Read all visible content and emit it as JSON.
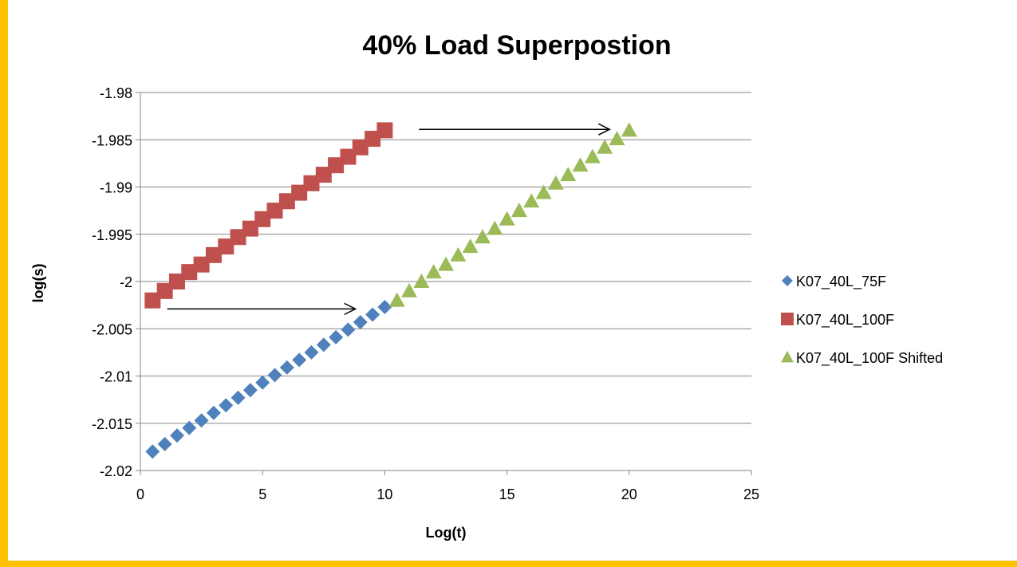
{
  "chart_data": {
    "type": "scatter",
    "title": "40% Load Superpostion",
    "xlabel": "Log(t)",
    "ylabel": "log(s)",
    "xlim": [
      0,
      25
    ],
    "ylim": [
      -2.02,
      -1.98
    ],
    "x_ticks": [
      0,
      5,
      10,
      15,
      20,
      25
    ],
    "x_tick_labels": [
      "0",
      "5",
      "10",
      "15",
      "20",
      "25"
    ],
    "y_ticks": [
      -1.98,
      -1.985,
      -1.99,
      -1.995,
      -2.0,
      -2.005,
      -2.01,
      -2.015,
      -2.02
    ],
    "y_tick_labels": [
      "-1.98",
      "-1.985",
      "-1.99",
      "-1.995",
      "-2",
      "-2.005",
      "-2.01",
      "-2.015",
      "-2.02"
    ],
    "grid": "horizontal",
    "legend_position": "right",
    "series": [
      {
        "name": "K07_40L_75F",
        "marker": "diamond",
        "color": "#4F81BD",
        "x": [
          0.5,
          1.0,
          1.5,
          2.0,
          2.5,
          3.0,
          3.5,
          4.0,
          4.5,
          5.0,
          5.5,
          6.0,
          6.5,
          7.0,
          7.5,
          8.0,
          8.5,
          9.0,
          9.5,
          10.0
        ],
        "y": [
          -2.018,
          -2.0172,
          -2.0163,
          -2.0155,
          -2.0147,
          -2.0139,
          -2.0131,
          -2.0123,
          -2.0115,
          -2.0107,
          -2.0099,
          -2.0091,
          -2.0083,
          -2.0075,
          -2.0067,
          -2.0059,
          -2.0051,
          -2.0043,
          -2.0035,
          -2.0027
        ]
      },
      {
        "name": "K07_40L_100F",
        "marker": "square",
        "color": "#C0504D",
        "x": [
          0.5,
          1.0,
          1.5,
          2.0,
          2.5,
          3.0,
          3.5,
          4.0,
          4.5,
          5.0,
          5.5,
          6.0,
          6.5,
          7.0,
          7.5,
          8.0,
          8.5,
          9.0,
          9.5,
          10.0
        ],
        "y": [
          -2.002,
          -2.001,
          -2.0,
          -1.999,
          -1.9982,
          -1.9972,
          -1.9963,
          -1.9953,
          -1.9944,
          -1.9934,
          -1.9925,
          -1.9915,
          -1.9906,
          -1.9896,
          -1.9887,
          -1.9877,
          -1.9868,
          -1.9858,
          -1.9849,
          -1.984
        ]
      },
      {
        "name": "K07_40L_100F Shifted",
        "marker": "triangle",
        "color": "#9BBB59",
        "x": [
          10.5,
          11.0,
          11.5,
          12.0,
          12.5,
          13.0,
          13.5,
          14.0,
          14.5,
          15.0,
          15.5,
          16.0,
          16.5,
          17.0,
          17.5,
          18.0,
          18.5,
          19.0,
          19.5,
          20.0
        ],
        "y": [
          -2.002,
          -2.001,
          -2.0,
          -1.999,
          -1.9982,
          -1.9972,
          -1.9963,
          -1.9953,
          -1.9944,
          -1.9934,
          -1.9925,
          -1.9915,
          -1.9906,
          -1.9896,
          -1.9887,
          -1.9877,
          -1.9868,
          -1.9858,
          -1.9849,
          -1.984
        ]
      }
    ],
    "annotations": [
      {
        "type": "arrow",
        "x1": 1.1,
        "y1": -2.0029,
        "x2": 8.8,
        "y2": -2.0029
      },
      {
        "type": "arrow",
        "x1": 11.4,
        "y1": -1.9839,
        "x2": 19.2,
        "y2": -1.9839
      }
    ]
  }
}
